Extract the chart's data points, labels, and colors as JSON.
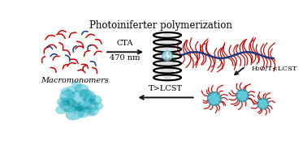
{
  "title": "Photoiniferter polymerization",
  "label_macromonomers": "Macromonomers",
  "label_cta": "CTA",
  "label_470nm": "470 nm",
  "label_h2o": "H₂O/T<LCST",
  "label_tlcst": "T>LCST",
  "bg_color": "#ffffff",
  "red_color": "#cc0000",
  "blue_color": "#1a3a7a",
  "teal_color": "#2ab8cc",
  "dark_teal": "#0a8a9a",
  "arrow_color": "#111111",
  "title_fontsize": 8.5,
  "label_fontsize": 7.0,
  "small_fontsize": 6.0,
  "macro_positions": [
    [
      10,
      155,
      20,
      16,
      "red"
    ],
    [
      28,
      163,
      -25,
      15,
      "red"
    ],
    [
      48,
      158,
      35,
      14,
      "red"
    ],
    [
      15,
      145,
      -15,
      13,
      "red"
    ],
    [
      60,
      152,
      -45,
      15,
      "red"
    ],
    [
      75,
      158,
      15,
      14,
      "red"
    ],
    [
      8,
      133,
      55,
      12,
      "red"
    ],
    [
      38,
      138,
      -35,
      14,
      "red"
    ],
    [
      58,
      140,
      10,
      13,
      "red"
    ],
    [
      80,
      145,
      -20,
      14,
      "red"
    ],
    [
      22,
      122,
      30,
      12,
      "red"
    ],
    [
      50,
      123,
      -28,
      14,
      "red"
    ],
    [
      72,
      128,
      45,
      13,
      "red"
    ],
    [
      18,
      110,
      -40,
      12,
      "red"
    ],
    [
      45,
      112,
      18,
      14,
      "red"
    ],
    [
      68,
      115,
      -30,
      12,
      "red"
    ],
    [
      88,
      130,
      25,
      13,
      "red"
    ],
    [
      32,
      150,
      -60,
      12,
      "red"
    ],
    [
      85,
      110,
      -50,
      12,
      "red"
    ],
    [
      5,
      118,
      65,
      11,
      "red"
    ],
    [
      38,
      108,
      40,
      11,
      "red"
    ],
    [
      62,
      105,
      -15,
      12,
      "red"
    ],
    [
      30,
      165,
      10,
      13,
      "red"
    ],
    [
      70,
      105,
      55,
      11,
      "red"
    ],
    [
      90,
      155,
      -35,
      12,
      "red"
    ],
    [
      42,
      130,
      -55,
      12,
      "blue"
    ],
    [
      68,
      163,
      25,
      11,
      "blue"
    ],
    [
      55,
      135,
      65,
      11,
      "blue"
    ],
    [
      18,
      128,
      12,
      11,
      "blue"
    ],
    [
      82,
      120,
      -38,
      11,
      "blue"
    ],
    [
      12,
      143,
      -20,
      10,
      "blue"
    ],
    [
      78,
      138,
      60,
      10,
      "blue"
    ]
  ]
}
